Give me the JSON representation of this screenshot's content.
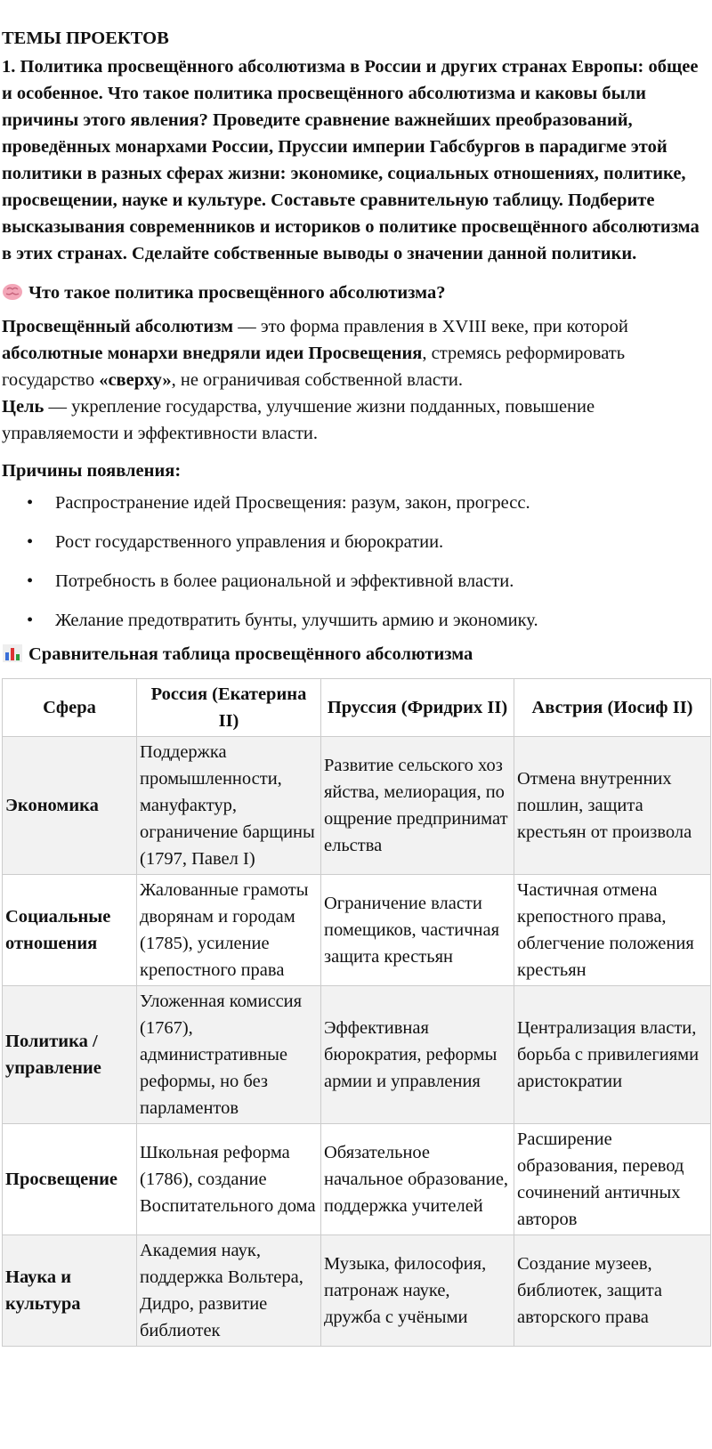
{
  "title": "ТЕМЫ ПРОЕКТОВ",
  "task": "1. Политика просвещённого абсолютизма в России и других странах Европы: общее и особенное. Что такое политика просвещённого абсолютизма и каковы были причины этого явления? Проведите сравнение важнейших преобразований, проведённых монархами России, Пруссии империи Габсбургов в парадигме этой политики в разных сферах жизни: экономике, социальных отношениях, политике, просвещении, науке и культуре. Составьте сравнительную таблицу. Подберите высказывания современников и историков о политике просвещённого абсолютизма в этих странах. Сделайте собственные выводы о значении данной политики.",
  "section1": {
    "icon": "brain-icon",
    "heading": "Что такое политика просвещённого абсолютизма?"
  },
  "definition": {
    "term": "Просвещённый абсолютизм",
    "t1": " — это форма правления в XVIII веке, при которой ",
    "b1": "абсолютные монархи внедряли идеи Просвещения",
    "t2": ", стремясь реформировать государство ",
    "b2": "«сверху»",
    "t3": ", не ограничивая собственной власти."
  },
  "goal": {
    "term": "Цель",
    "text": " — укрепление государства, улучшение жизни подданных, повышение управляемости и эффективности власти."
  },
  "reasons": {
    "heading": "Причины появления:",
    "items": [
      "Распространение идей Просвещения: разум, закон, прогресс.",
      "Рост государственного управления и бюрократии.",
      "Потребность в более рациональной и эффективной власти.",
      "Желание предотвратить бунты, улучшить армию и экономику."
    ]
  },
  "section2": {
    "icon": "bar-chart-icon",
    "heading": "Сравнительная таблица просвещённого абсолютизма"
  },
  "table": {
    "headers": [
      "Сфера",
      "Россия (Екатерина II)",
      "Пруссия (Фридрих II)",
      "Австрия (Иосиф II)"
    ],
    "rows": [
      [
        "Экономика",
        "Поддержка промышленности, мануфактур, ограничение барщины (1797, Павел I)",
        "Развитие сельского хозяйства, мелиорация, поощрение предпринимательства",
        "Отмена внутренних пошлин, защита крестьян от произвола"
      ],
      [
        "Социальные отношения",
        "Жалованные грамоты дворянам и городам (1785), усиление крепостного права",
        "Ограничение власти помещиков, частичная защита крестьян",
        "Частичная отмена крепостного права, облегчение положения крестьян"
      ],
      [
        "Политика / управление",
        "Уложенная комиссия (1767), административные реформы, но без парламентов",
        "Эффективная бюрократия, реформы армии и управления",
        "Централизация власти, борьба с привилегиями аристократии"
      ],
      [
        "Просвещение",
        "Школьная реформа (1786), создание Воспитательного дома",
        "Обязательное начальное образование, поддержка учителей",
        "Расширение образования, перевод сочинений античных авторов"
      ],
      [
        "Наука и культура",
        "Академия наук, поддержка Вольтера, Дидро, развитие библиотек",
        "Музыка, философия, патронаж науке, дружба с учёными",
        "Создание музеев, библиотек, защита авторского права"
      ]
    ]
  }
}
